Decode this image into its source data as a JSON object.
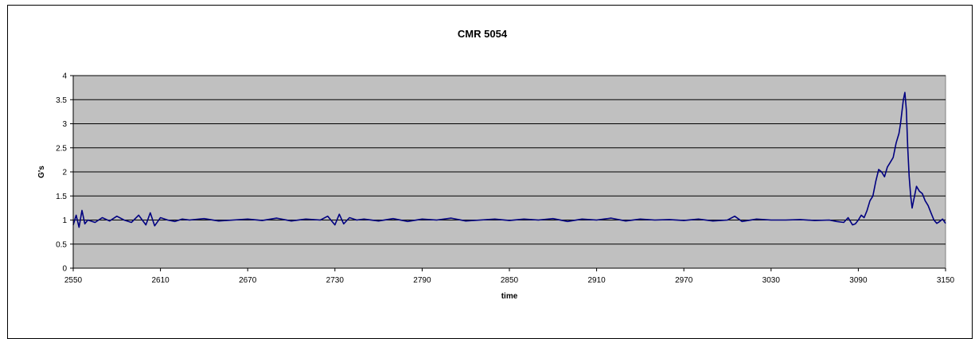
{
  "chart_data": {
    "type": "line",
    "title": "CMR 5054",
    "xlabel": "time",
    "ylabel": "G's",
    "xlim": [
      2550,
      3150
    ],
    "ylim": [
      0,
      4
    ],
    "x_ticks": [
      "2550",
      "2610",
      "2670",
      "2730",
      "2790",
      "2850",
      "2910",
      "2970",
      "3030",
      "3090",
      "3150"
    ],
    "y_ticks": [
      "0",
      "0.5",
      "1",
      "1.5",
      "2",
      "2.5",
      "3",
      "3.5",
      "4"
    ],
    "grid": "horizontal",
    "legend": "none",
    "plot_background": "#C0C0C0",
    "line_color": "#000080",
    "series": [
      {
        "x": [
          2550,
          2552,
          2554,
          2556,
          2558,
          2560,
          2565,
          2570,
          2575,
          2580,
          2585,
          2590,
          2595,
          2600,
          2603,
          2606,
          2610,
          2615,
          2620,
          2625,
          2630,
          2640,
          2650,
          2660,
          2670,
          2680,
          2690,
          2700,
          2710,
          2720,
          2725,
          2730,
          2733,
          2736,
          2740,
          2745,
          2750,
          2760,
          2770,
          2780,
          2790,
          2800,
          2810,
          2820,
          2830,
          2840,
          2850,
          2860,
          2870,
          2880,
          2890,
          2900,
          2910,
          2920,
          2930,
          2940,
          2950,
          2960,
          2970,
          2980,
          2990,
          3000,
          3005,
          3010,
          3020,
          3030,
          3040,
          3050,
          3060,
          3070,
          3075,
          3080,
          3083,
          3086,
          3088,
          3090,
          3092,
          3094,
          3096,
          3098,
          3100,
          3102,
          3104,
          3106,
          3108,
          3110,
          3112,
          3114,
          3116,
          3118,
          3119,
          3120,
          3121,
          3122,
          3123,
          3124,
          3125,
          3126,
          3127,
          3128,
          3130,
          3132,
          3134,
          3136,
          3138,
          3140,
          3142,
          3144,
          3146,
          3148,
          3150
        ],
        "y": [
          0.9,
          1.1,
          0.85,
          1.2,
          0.92,
          1.0,
          0.95,
          1.05,
          0.98,
          1.08,
          1.0,
          0.95,
          1.1,
          0.9,
          1.15,
          0.88,
          1.05,
          1.0,
          0.97,
          1.02,
          1.0,
          1.03,
          0.98,
          1.0,
          1.02,
          0.99,
          1.04,
          0.98,
          1.02,
          1.0,
          1.08,
          0.9,
          1.12,
          0.92,
          1.05,
          1.0,
          1.02,
          0.98,
          1.03,
          0.97,
          1.02,
          1.0,
          1.04,
          0.98,
          1.0,
          1.02,
          0.99,
          1.02,
          1.0,
          1.03,
          0.97,
          1.02,
          1.0,
          1.04,
          0.98,
          1.02,
          1.0,
          1.01,
          0.99,
          1.02,
          0.98,
          1.0,
          1.08,
          0.97,
          1.02,
          1.0,
          1.0,
          1.01,
          0.99,
          1.0,
          0.97,
          0.95,
          1.05,
          0.9,
          0.92,
          1.0,
          1.1,
          1.05,
          1.2,
          1.4,
          1.5,
          1.8,
          2.05,
          2.0,
          1.9,
          2.1,
          2.2,
          2.3,
          2.6,
          2.8,
          3.0,
          3.25,
          3.5,
          3.65,
          3.3,
          2.5,
          1.9,
          1.5,
          1.25,
          1.4,
          1.7,
          1.6,
          1.55,
          1.4,
          1.3,
          1.15,
          1.0,
          0.93,
          0.97,
          1.02,
          0.93
        ]
      }
    ]
  }
}
